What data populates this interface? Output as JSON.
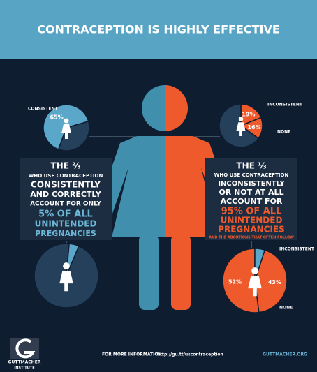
{
  "header": {
    "title": "CONTRACEPTION IS HIGHLY EFFECTIVE"
  },
  "pies": [
    {
      "categories": [
        "CONSISTENT",
        null
      ],
      "values": [
        65,
        35
      ],
      "value_labels": [
        "65%",
        null
      ],
      "colors": [
        "#5aa7c9",
        "#24405a"
      ]
    },
    {
      "categories": [
        "INCONSISTENT",
        "NONE",
        null
      ],
      "values": [
        19,
        16,
        65
      ],
      "value_labels": [
        "19%",
        "16%",
        null
      ],
      "colors": [
        "#ef5a2c",
        "#ef5a2c",
        "#24405a"
      ]
    },
    {
      "categories": [
        null,
        null
      ],
      "values": [
        5,
        95
      ],
      "value_labels": [
        null,
        null
      ],
      "colors": [
        "#5aa7c9",
        "#24405a"
      ]
    },
    {
      "categories": [
        "INCONSISTENT",
        "NONE",
        null
      ],
      "values": [
        43,
        52,
        5
      ],
      "value_labels": [
        "43%",
        "52%",
        null
      ],
      "colors": [
        "#ef5a2c",
        "#ef5a2c",
        "#5aa7c9"
      ]
    }
  ],
  "left_block": {
    "lines": [
      "THE ⅔",
      "WHO USE CONTRACEPTION",
      "CONSISTENTLY",
      "AND CORRECTLY",
      "ACCOUNT FOR ONLY",
      "5% OF ALL",
      "UNINTENDED",
      "PREGNANCIES"
    ]
  },
  "right_block": {
    "lines": [
      "THE ⅓",
      "WHO USE CONTRACEPTION",
      "INCONSISTENTLY",
      "OR NOT AT ALL",
      "ACCOUNT FOR",
      "95% OF ALL",
      "UNINTENDED",
      "PREGNANCIES",
      "AND THE ABORTIONS THAT OFTEN FOLLOW"
    ]
  },
  "footer": {
    "logo": [
      "GUTTMACHER",
      "INSTITUTE"
    ],
    "info_label": "FOR MORE INFORMATION:",
    "url": "http://gu.tt/uscontraception",
    "site": "GUTTMACHER.ORG"
  }
}
